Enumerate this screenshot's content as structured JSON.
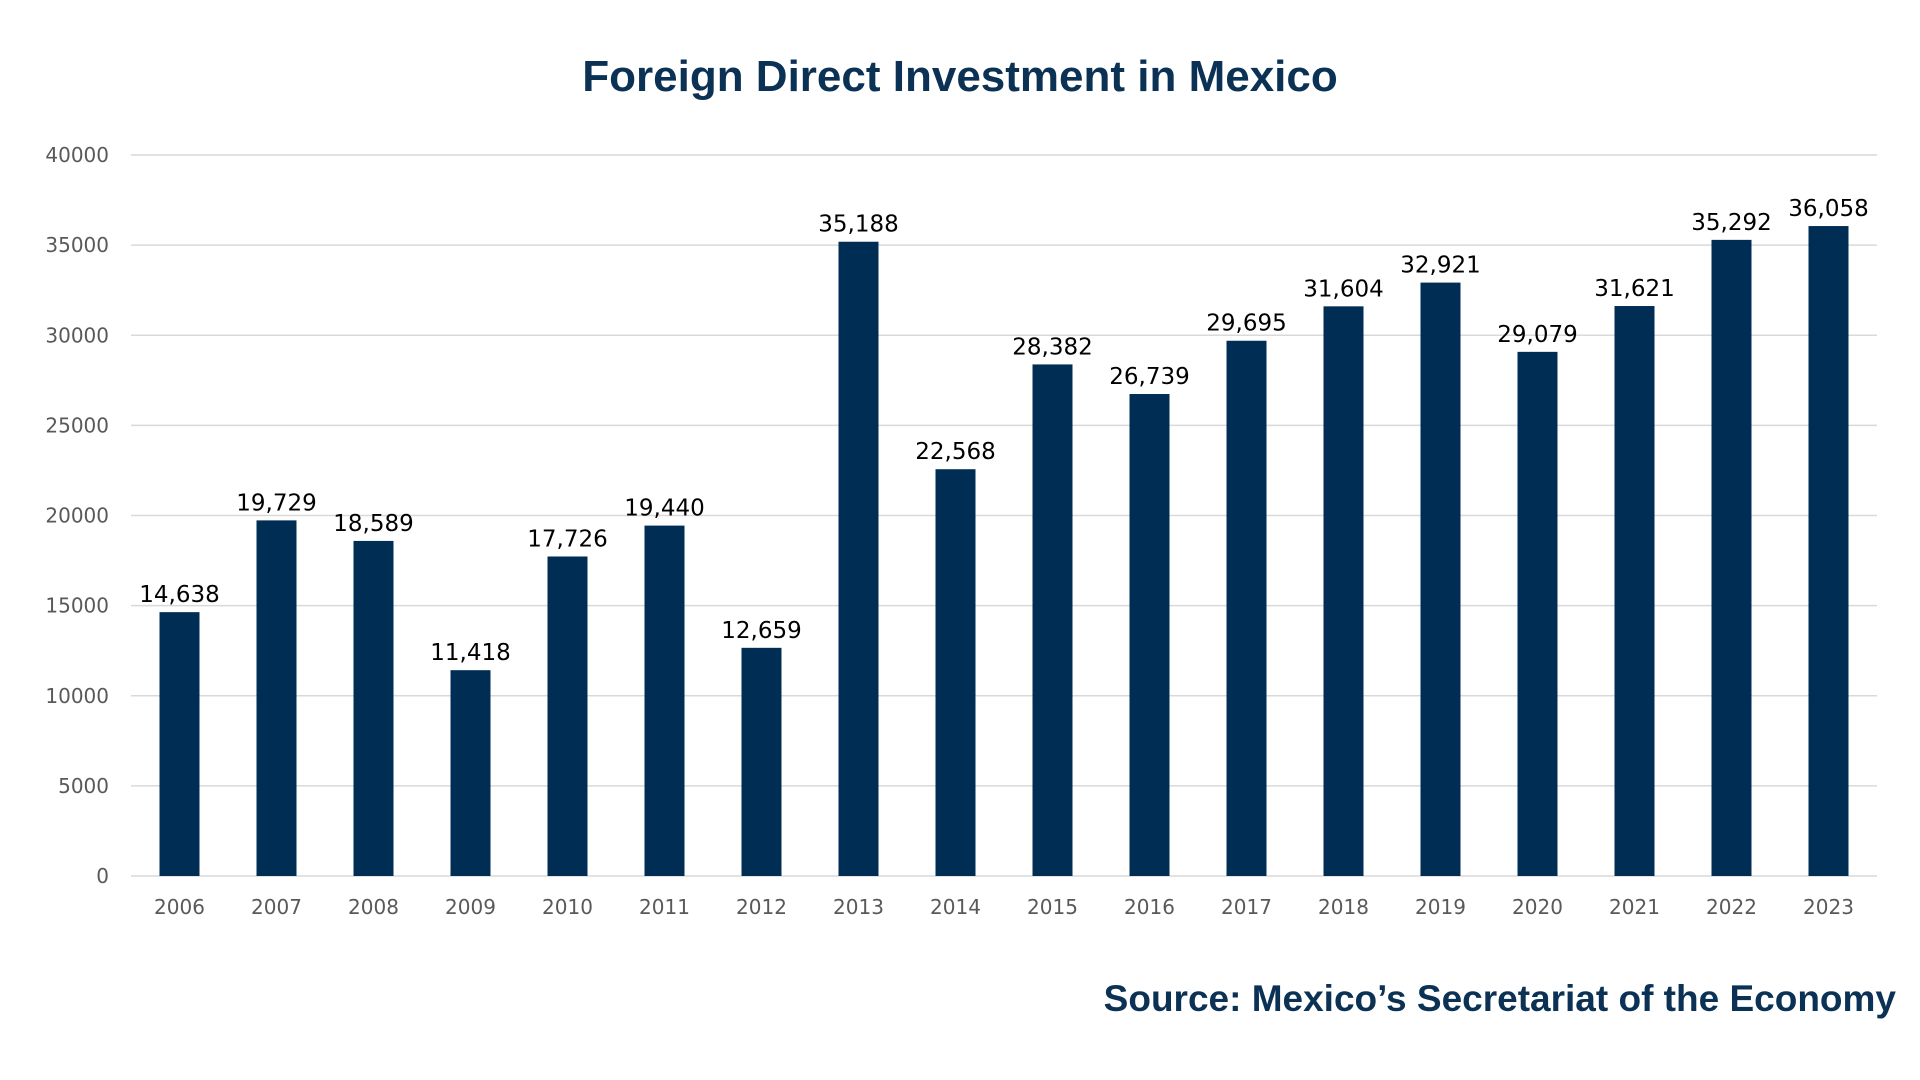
{
  "chart_data": {
    "type": "bar",
    "title": "Foreign Direct Investment in Mexico",
    "xlabel": "",
    "ylabel": "",
    "categories": [
      "2006",
      "2007",
      "2008",
      "2009",
      "2010",
      "2011",
      "2012",
      "2013",
      "2014",
      "2015",
      "2016",
      "2017",
      "2018",
      "2019",
      "2020",
      "2021",
      "2022",
      "2023"
    ],
    "values": [
      14638,
      19729,
      18589,
      11418,
      17726,
      19440,
      12659,
      35188,
      22568,
      28382,
      26739,
      29695,
      31604,
      32921,
      29079,
      31621,
      35292,
      36058
    ],
    "data_labels": [
      "14,638",
      "19,729",
      "18,589",
      "11,418",
      "17,726",
      "19,440",
      "12,659",
      "35,188",
      "22,568",
      "28,382",
      "26,739",
      "29,695",
      "31,604",
      "32,921",
      "29,079",
      "31,621",
      "35,292",
      "36,058"
    ],
    "yticks": [
      0,
      5000,
      10000,
      15000,
      20000,
      25000,
      30000,
      35000,
      40000
    ],
    "ylim": [
      0,
      40000
    ],
    "grid": true,
    "legend": "none",
    "bar_color": "#002d54"
  },
  "source": "Source: Mexico’s Secretariat of the Economy",
  "colors": {
    "title": "#0b3154",
    "gridline": "#d9d9d9",
    "tick_text": "#595959"
  }
}
